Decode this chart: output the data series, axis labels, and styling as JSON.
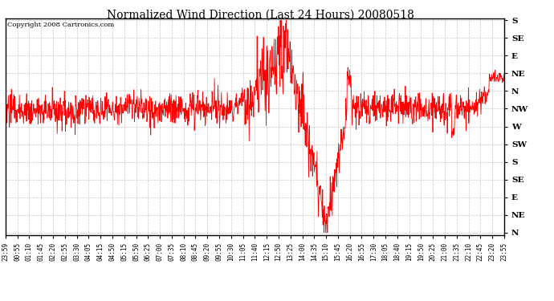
{
  "title": "Normalized Wind Direction (Last 24 Hours) 20080518",
  "copyright": "Copyright 2008 Cartronics.com",
  "line_color": "#ff0000",
  "background_color": "#ffffff",
  "plot_bg_color": "#ffffff",
  "grid_color": "#bbbbbb",
  "y_labels": [
    "S",
    "SE",
    "E",
    "NE",
    "N",
    "NW",
    "W",
    "SW",
    "S",
    "SE",
    "E",
    "NE",
    "N"
  ],
  "y_values": [
    1.0,
    0.9167,
    0.8333,
    0.75,
    0.6667,
    0.5833,
    0.5,
    0.4167,
    0.3333,
    0.25,
    0.1667,
    0.0833,
    0.0
  ],
  "x_tick_labels": [
    "23:59",
    "00:55",
    "01:10",
    "01:45",
    "02:20",
    "02:55",
    "03:30",
    "04:05",
    "04:15",
    "04:50",
    "05:15",
    "05:50",
    "06:25",
    "07:00",
    "07:35",
    "08:10",
    "08:45",
    "09:20",
    "09:55",
    "10:30",
    "11:05",
    "11:40",
    "12:15",
    "12:50",
    "13:25",
    "14:00",
    "14:35",
    "15:10",
    "15:45",
    "16:20",
    "16:55",
    "17:30",
    "18:05",
    "18:40",
    "19:15",
    "19:50",
    "20:25",
    "21:00",
    "21:35",
    "22:10",
    "22:45",
    "23:20",
    "23:55"
  ],
  "ylim": [
    0.0,
    1.0
  ],
  "num_points": 1440,
  "nw_level": 0.5833,
  "noise_std": 0.032,
  "figsize": [
    6.9,
    3.75
  ],
  "dpi": 100
}
